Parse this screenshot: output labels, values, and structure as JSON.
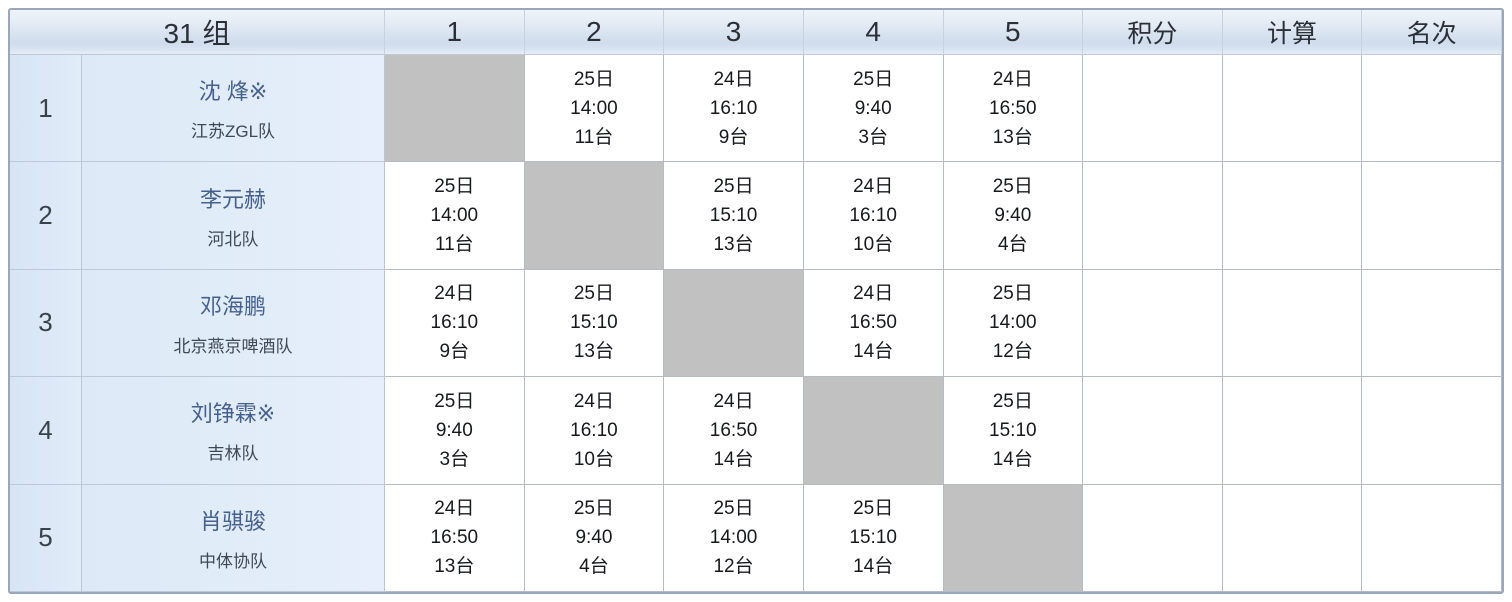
{
  "table": {
    "group_label": "31 组",
    "round_headers": [
      "1",
      "2",
      "3",
      "4",
      "5"
    ],
    "result_headers": [
      "积分",
      "计算",
      "名次"
    ],
    "colors": {
      "header_gradient_top": "#eff4fa",
      "header_gradient_bottom": "#cfdcec",
      "label_cell_bg": "#dfeaf7",
      "self_cell_bg": "#c1c1c1",
      "grid_line": "#b7bcc4",
      "outer_border": "#9aa7b7",
      "player_name_text": "#45618b",
      "team_name_text": "#3f4856",
      "schedule_text": "#17191d"
    },
    "players": [
      {
        "seed": "1",
        "name": "沈 烽※",
        "team": "江苏ZGL队",
        "score": "",
        "calc": "",
        "rank": "",
        "schedule": [
          null,
          {
            "date": "25日",
            "time": "14:00",
            "table": "11台"
          },
          {
            "date": "24日",
            "time": "16:10",
            "table": "9台"
          },
          {
            "date": "25日",
            "time": "9:40",
            "table": "3台"
          },
          {
            "date": "24日",
            "time": "16:50",
            "table": "13台"
          }
        ]
      },
      {
        "seed": "2",
        "name": "李元赫",
        "team": "河北队",
        "score": "",
        "calc": "",
        "rank": "",
        "schedule": [
          {
            "date": "25日",
            "time": "14:00",
            "table": "11台"
          },
          null,
          {
            "date": "25日",
            "time": "15:10",
            "table": "13台"
          },
          {
            "date": "24日",
            "time": "16:10",
            "table": "10台"
          },
          {
            "date": "25日",
            "time": "9:40",
            "table": "4台"
          }
        ]
      },
      {
        "seed": "3",
        "name": "邓海鹏",
        "team": "北京燕京啤酒队",
        "score": "",
        "calc": "",
        "rank": "",
        "schedule": [
          {
            "date": "24日",
            "time": "16:10",
            "table": "9台"
          },
          {
            "date": "25日",
            "time": "15:10",
            "table": "13台"
          },
          null,
          {
            "date": "24日",
            "time": "16:50",
            "table": "14台"
          },
          {
            "date": "25日",
            "time": "14:00",
            "table": "12台"
          }
        ]
      },
      {
        "seed": "4",
        "name": "刘铮霖※",
        "team": "吉林队",
        "score": "",
        "calc": "",
        "rank": "",
        "schedule": [
          {
            "date": "25日",
            "time": "9:40",
            "table": "3台"
          },
          {
            "date": "24日",
            "time": "16:10",
            "table": "10台"
          },
          {
            "date": "24日",
            "time": "16:50",
            "table": "14台"
          },
          null,
          {
            "date": "25日",
            "time": "15:10",
            "table": "14台"
          }
        ]
      },
      {
        "seed": "5",
        "name": "肖骐骏",
        "team": "中体协队",
        "score": "",
        "calc": "",
        "rank": "",
        "schedule": [
          {
            "date": "24日",
            "time": "16:50",
            "table": "13台"
          },
          {
            "date": "25日",
            "time": "9:40",
            "table": "4台"
          },
          {
            "date": "25日",
            "time": "14:00",
            "table": "12台"
          },
          {
            "date": "25日",
            "time": "15:10",
            "table": "14台"
          },
          null
        ]
      }
    ]
  }
}
